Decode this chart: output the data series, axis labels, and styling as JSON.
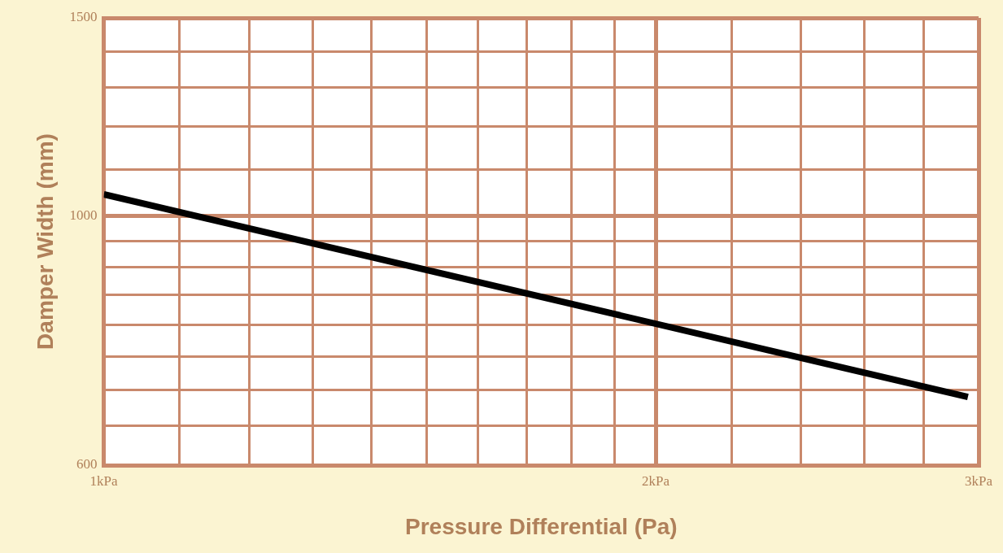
{
  "chart_data": {
    "type": "line",
    "xlabel": "Pressure Differential (Pa)",
    "ylabel": "Damper Width (mm)",
    "log": "xy",
    "grid": true,
    "legend": false,
    "marker": "none",
    "line_style": "solid",
    "x": [
      1,
      2.96
    ],
    "series": [
      {
        "color": "#000000",
        "values": [
          1045,
          690
        ]
      }
    ],
    "xlim": [
      1,
      3
    ],
    "ylim": [
      600,
      1500
    ],
    "xticks": [
      {
        "value": 1,
        "label": "1kPa"
      },
      {
        "value": 1.1,
        "label": null
      },
      {
        "value": 1.2,
        "label": null
      },
      {
        "value": 1.3,
        "label": null
      },
      {
        "value": 1.4,
        "label": null
      },
      {
        "value": 1.5,
        "label": null
      },
      {
        "value": 1.6,
        "label": null
      },
      {
        "value": 1.7,
        "label": null
      },
      {
        "value": 1.8,
        "label": null
      },
      {
        "value": 1.9,
        "label": null
      },
      {
        "value": 2,
        "label": "2kPa"
      },
      {
        "value": 2.2,
        "label": null
      },
      {
        "value": 2.4,
        "label": null
      },
      {
        "value": 2.6,
        "label": null
      },
      {
        "value": 2.8,
        "label": null
      },
      {
        "value": 3,
        "label": "3kPa"
      }
    ],
    "yticks": [
      600,
      {
        "value": 650,
        "label": null
      },
      {
        "value": 700,
        "label": null
      },
      {
        "value": 750,
        "label": null
      },
      {
        "value": 800,
        "label": null
      },
      {
        "value": 850,
        "label": null
      },
      {
        "value": 900,
        "label": null
      },
      {
        "value": 950,
        "label": null
      },
      1000,
      {
        "value": 1100,
        "label": null
      },
      {
        "value": 1200,
        "label": null
      },
      {
        "value": 1300,
        "label": null
      },
      {
        "value": 1400,
        "label": null
      },
      1500
    ]
  }
}
